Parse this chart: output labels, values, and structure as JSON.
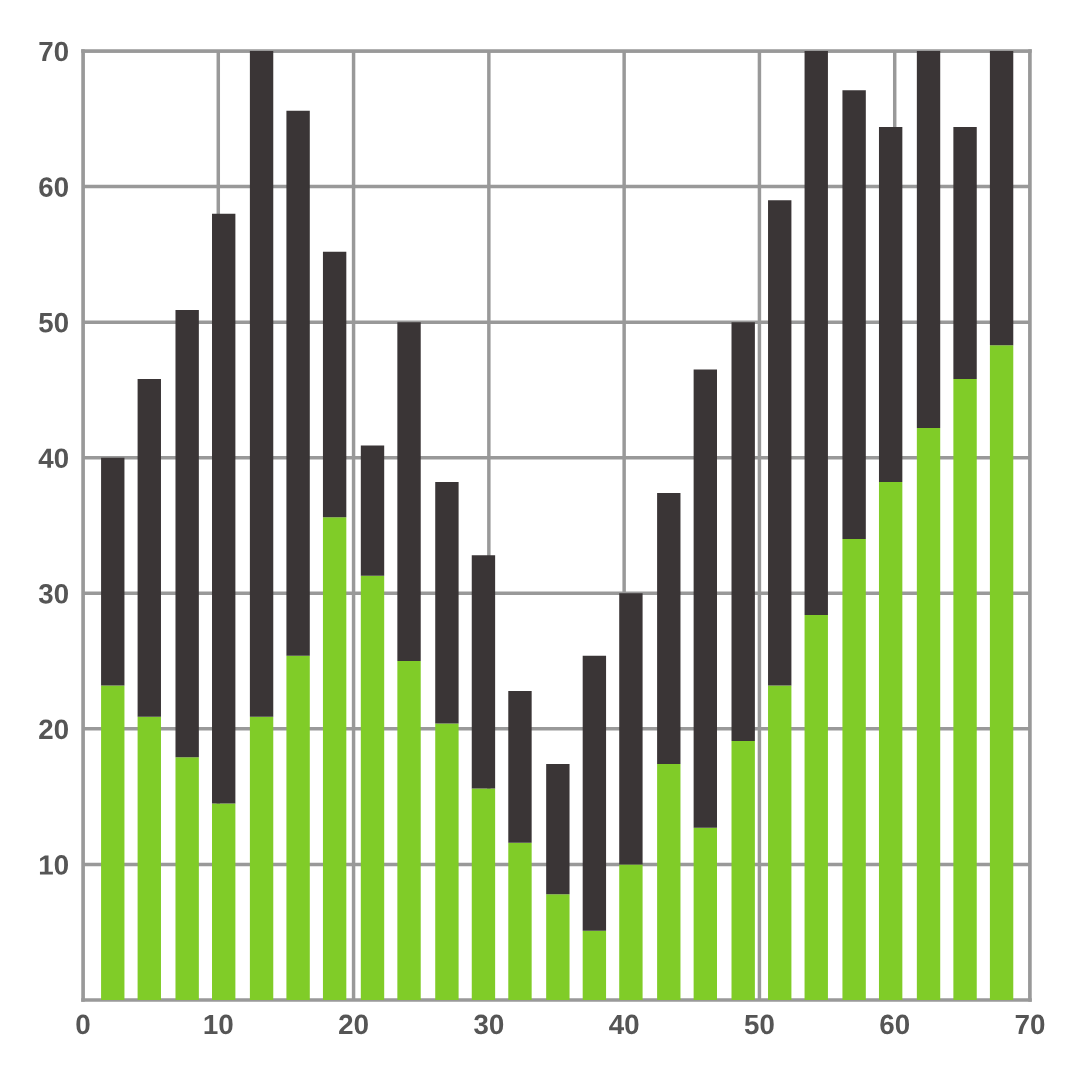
{
  "chart_data": {
    "type": "bar",
    "stacked": true,
    "x": [
      2.2,
      4.9,
      7.7,
      10.4,
      13.2,
      15.9,
      18.6,
      21.4,
      24.1,
      26.9,
      29.6,
      32.3,
      35.1,
      37.8,
      40.5,
      43.3,
      46.0,
      48.8,
      51.5,
      54.2,
      57.0,
      59.7,
      62.5,
      65.2,
      67.9
    ],
    "xlim": [
      0,
      70
    ],
    "xticks": [
      0,
      10,
      20,
      30,
      40,
      50,
      60,
      70
    ],
    "ylim": [
      0,
      70
    ],
    "yticks": [
      10,
      20,
      30,
      40,
      50,
      60,
      70
    ],
    "grid": true,
    "series": [
      {
        "color": "#80cc28",
        "values": [
          23.2,
          20.9,
          17.9,
          14.5,
          20.9,
          25.4,
          35.6,
          31.3,
          25.0,
          20.4,
          15.6,
          11.6,
          7.8,
          5.1,
          10.0,
          17.4,
          12.7,
          19.1,
          23.2,
          28.4,
          34.0,
          38.2,
          42.2,
          45.8,
          48.3
        ]
      },
      {
        "color": "#3a3536",
        "values": [
          16.8,
          24.9,
          33.0,
          43.5,
          49.1,
          40.2,
          19.6,
          9.6,
          25.0,
          17.8,
          17.2,
          11.2,
          9.6,
          20.3,
          20.0,
          20.0,
          33.8,
          30.9,
          35.8,
          41.6,
          33.1,
          26.2,
          27.8,
          18.6,
          21.7
        ]
      }
    ]
  }
}
